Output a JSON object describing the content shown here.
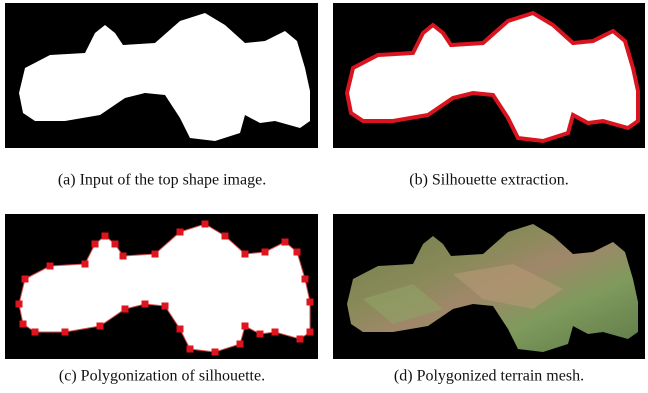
{
  "figure": {
    "subfigures": [
      {
        "caption": "(a) Input of the top shape image."
      },
      {
        "caption": "(b) Silhouette extraction."
      },
      {
        "caption": "(c) Polygonization of silhouette."
      },
      {
        "caption": "(d) Polygonized terrain mesh."
      }
    ]
  }
}
